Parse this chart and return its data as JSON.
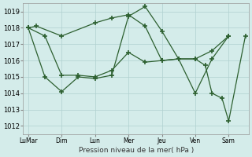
{
  "xlabel": "Pression niveau de la mer( hPa )",
  "ylim": [
    1011.5,
    1019.5
  ],
  "yticks": [
    1012,
    1013,
    1014,
    1015,
    1016,
    1017,
    1018,
    1019
  ],
  "background_color": "#d4ecea",
  "grid_color": "#b0d0cf",
  "line_color": "#2d6030",
  "xtick_labels": [
    "LuMar",
    "Dim",
    "Lun",
    "Mer",
    "Jeu",
    "Ven",
    "Sam"
  ],
  "xtick_positions": [
    0,
    1,
    2,
    3,
    4,
    5,
    6
  ],
  "series1": {
    "x": [
      0,
      0.25,
      1,
      2,
      2.5,
      3,
      3.5,
      4,
      4.5,
      5,
      5.5,
      6
    ],
    "y": [
      1018.0,
      1018.1,
      1017.5,
      1018.3,
      1018.6,
      1018.8,
      1018.1,
      1016.0,
      1016.1,
      1016.1,
      1016.6,
      1017.5
    ]
  },
  "series2": {
    "x": [
      0,
      0.5,
      1,
      1.5,
      2,
      2.5,
      3,
      3.5,
      4,
      4.5,
      5,
      5.5,
      6
    ],
    "y": [
      1018.0,
      1017.5,
      1015.1,
      1015.1,
      1015.0,
      1015.4,
      1016.5,
      1015.9,
      1016.0,
      1016.1,
      1014.0,
      1016.1,
      1017.5
    ]
  },
  "series3": {
    "x": [
      0,
      0.5,
      1,
      1.5,
      2,
      2.5,
      3,
      3.5,
      4,
      4.5,
      5,
      5.3,
      5.5,
      5.8,
      6,
      6.5
    ],
    "y": [
      1018.0,
      1015.0,
      1014.1,
      1015.0,
      1014.9,
      1015.1,
      1018.7,
      1019.3,
      1017.8,
      1016.1,
      1016.1,
      1015.7,
      1014.0,
      1013.7,
      1012.3,
      1017.5
    ]
  }
}
